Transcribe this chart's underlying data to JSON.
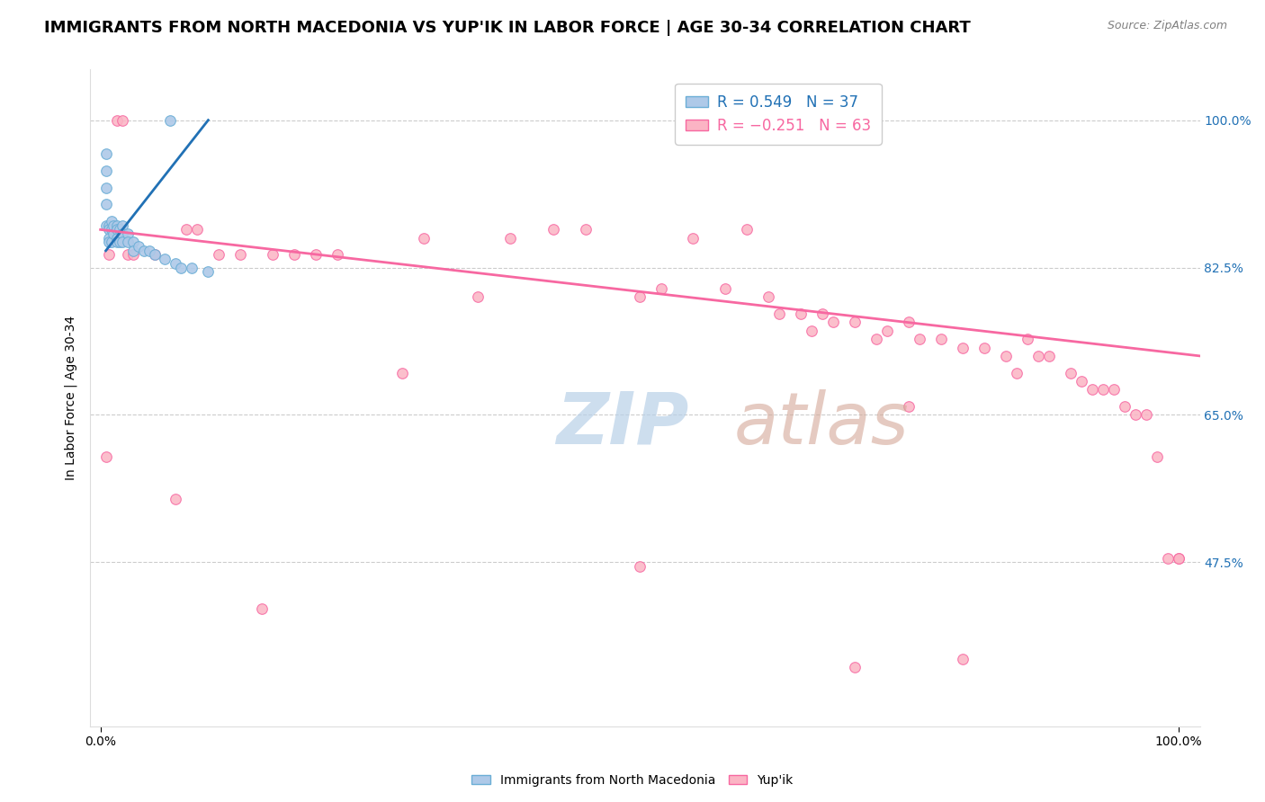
{
  "title": "IMMIGRANTS FROM NORTH MACEDONIA VS YUP'IK IN LABOR FORCE | AGE 30-34 CORRELATION CHART",
  "source": "Source: ZipAtlas.com",
  "ylabel": "In Labor Force | Age 30-34",
  "ytick_labels": [
    "100.0%",
    "82.5%",
    "65.0%",
    "47.5%"
  ],
  "ytick_values": [
    1.0,
    0.825,
    0.65,
    0.475
  ],
  "xlim": [
    -0.01,
    1.02
  ],
  "ylim": [
    0.28,
    1.06
  ],
  "blue_scatter_x": [
    0.005,
    0.005,
    0.005,
    0.005,
    0.005,
    0.008,
    0.008,
    0.008,
    0.008,
    0.01,
    0.01,
    0.01,
    0.012,
    0.012,
    0.015,
    0.015,
    0.015,
    0.015,
    0.018,
    0.018,
    0.02,
    0.02,
    0.02,
    0.025,
    0.025,
    0.03,
    0.03,
    0.035,
    0.04,
    0.045,
    0.05,
    0.06,
    0.065,
    0.07,
    0.075,
    0.085,
    0.1
  ],
  "blue_scatter_y": [
    0.96,
    0.94,
    0.92,
    0.9,
    0.875,
    0.875,
    0.87,
    0.86,
    0.855,
    0.88,
    0.87,
    0.855,
    0.875,
    0.865,
    0.875,
    0.87,
    0.86,
    0.855,
    0.87,
    0.855,
    0.875,
    0.865,
    0.855,
    0.865,
    0.855,
    0.855,
    0.845,
    0.85,
    0.845,
    0.845,
    0.84,
    0.835,
    1.0,
    0.83,
    0.825,
    0.825,
    0.82
  ],
  "pink_scatter_x": [
    0.005,
    0.008,
    0.015,
    0.02,
    0.025,
    0.03,
    0.05,
    0.07,
    0.08,
    0.09,
    0.11,
    0.13,
    0.16,
    0.18,
    0.2,
    0.22,
    0.28,
    0.3,
    0.35,
    0.38,
    0.42,
    0.45,
    0.5,
    0.52,
    0.55,
    0.58,
    0.6,
    0.62,
    0.63,
    0.65,
    0.66,
    0.67,
    0.68,
    0.7,
    0.72,
    0.73,
    0.75,
    0.76,
    0.78,
    0.8,
    0.82,
    0.84,
    0.85,
    0.86,
    0.87,
    0.88,
    0.9,
    0.91,
    0.92,
    0.93,
    0.94,
    0.95,
    0.96,
    0.97,
    0.98,
    0.99,
    1.0,
    1.0,
    0.15,
    0.5,
    0.7,
    0.75,
    0.8
  ],
  "pink_scatter_y": [
    0.6,
    0.84,
    1.0,
    1.0,
    0.84,
    0.84,
    0.84,
    0.55,
    0.87,
    0.87,
    0.84,
    0.84,
    0.84,
    0.84,
    0.84,
    0.84,
    0.7,
    0.86,
    0.79,
    0.86,
    0.87,
    0.87,
    0.79,
    0.8,
    0.86,
    0.8,
    0.87,
    0.79,
    0.77,
    0.77,
    0.75,
    0.77,
    0.76,
    0.76,
    0.74,
    0.75,
    0.76,
    0.74,
    0.74,
    0.73,
    0.73,
    0.72,
    0.7,
    0.74,
    0.72,
    0.72,
    0.7,
    0.69,
    0.68,
    0.68,
    0.68,
    0.66,
    0.65,
    0.65,
    0.6,
    0.48,
    0.48,
    0.48,
    0.42,
    0.47,
    0.35,
    0.66,
    0.36
  ],
  "blue_line_x": [
    0.005,
    0.1
  ],
  "blue_line_y": [
    0.845,
    1.0
  ],
  "pink_line_x": [
    0.0,
    1.02
  ],
  "pink_line_y": [
    0.87,
    0.72
  ],
  "blue_color": "#aec9e8",
  "blue_edge_color": "#6baed6",
  "pink_color": "#fbb4c4",
  "pink_edge_color": "#f768a1",
  "blue_line_color": "#2171b5",
  "pink_line_color": "#f768a1",
  "grid_color": "#cccccc",
  "title_fontsize": 13,
  "label_fontsize": 10,
  "tick_fontsize": 10,
  "scatter_size": 70,
  "watermark_zip_color": "#b0c8e0",
  "watermark_atlas_color": "#c8a898"
}
